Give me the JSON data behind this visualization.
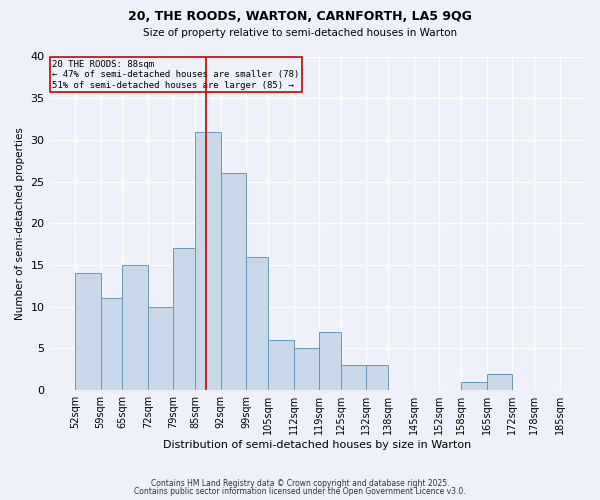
{
  "title1": "20, THE ROODS, WARTON, CARNFORTH, LA5 9QG",
  "title2": "Size of property relative to semi-detached houses in Warton",
  "xlabel": "Distribution of semi-detached houses by size in Warton",
  "ylabel": "Number of semi-detached properties",
  "bar_left_edges": [
    52,
    59,
    65,
    72,
    79,
    85,
    92,
    99,
    105,
    112,
    119,
    125,
    132,
    138,
    145,
    152,
    158,
    165,
    172,
    178
  ],
  "bar_widths": [
    7,
    6,
    7,
    7,
    6,
    7,
    7,
    6,
    7,
    7,
    6,
    7,
    6,
    7,
    7,
    6,
    7,
    7,
    6,
    7
  ],
  "bar_heights": [
    14,
    11,
    15,
    10,
    17,
    31,
    26,
    16,
    6,
    5,
    7,
    3,
    3,
    0,
    0,
    0,
    1,
    2,
    0,
    0
  ],
  "bar_color": "#c8d8e8",
  "bar_edge_color": "#6699bb",
  "property_size": 88,
  "vline_color": "#cc0000",
  "annotation_text": "20 THE ROODS: 88sqm\n← 47% of semi-detached houses are smaller (78)\n51% of semi-detached houses are larger (85) →",
  "annotation_box_color": "#cc0000",
  "ylim": [
    0,
    40
  ],
  "yticks": [
    0,
    5,
    10,
    15,
    20,
    25,
    30,
    35,
    40
  ],
  "xlim": [
    45,
    192
  ],
  "tick_labels": [
    "52sqm",
    "59sqm",
    "65sqm",
    "72sqm",
    "79sqm",
    "85sqm",
    "92sqm",
    "99sqm",
    "105sqm",
    "112sqm",
    "119sqm",
    "125sqm",
    "132sqm",
    "138sqm",
    "145sqm",
    "152sqm",
    "158sqm",
    "165sqm",
    "172sqm",
    "178sqm",
    "185sqm"
  ],
  "tick_positions": [
    52,
    59,
    65,
    72,
    79,
    85,
    92,
    99,
    105,
    112,
    119,
    125,
    132,
    138,
    145,
    152,
    158,
    165,
    172,
    178,
    185
  ],
  "background_color": "#eef1fa",
  "grid_color": "#ffffff",
  "footer_text1": "Contains HM Land Registry data © Crown copyright and database right 2025.",
  "footer_text2": "Contains public sector information licensed under the Open Government Licence v3.0."
}
